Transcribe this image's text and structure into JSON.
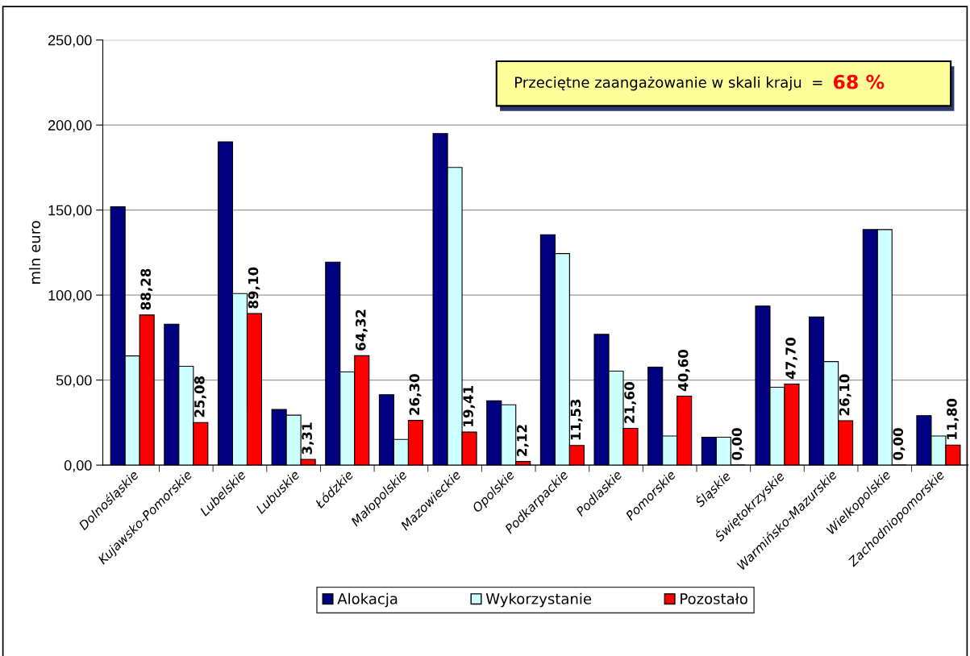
{
  "chart_data": {
    "type": "bar",
    "ylabel": "mln euro",
    "categories": [
      "Dolnośląskie",
      "Kujawsko-Pomorskie",
      "Lubelskie",
      "Lubuskie",
      "Łódzkie",
      "Małopolskie",
      "Mazowieckie",
      "Opolskie",
      "Podkarpackie",
      "Podlaskie",
      "Pomorskie",
      "Śląskie",
      "Świętokrzyskie",
      "Warmińsko-Mazurskie",
      "Wielkopolskie",
      "Zachodniopomorskie"
    ],
    "series": [
      {
        "name": "Alokacja",
        "color": "#000080",
        "values": [
          151.9,
          82.9,
          190.1,
          32.7,
          119.4,
          41.4,
          195.0,
          37.8,
          135.5,
          76.9,
          57.6,
          16.4,
          93.5,
          87.1,
          138.5,
          29.1
        ]
      },
      {
        "name": "Wykorzystanie",
        "color": "#ccffff",
        "values": [
          64.2,
          58.1,
          100.9,
          29.4,
          54.8,
          15.1,
          175.1,
          35.5,
          124.4,
          55.3,
          17.1,
          16.4,
          45.8,
          60.9,
          138.5,
          17.1
        ]
      },
      {
        "name": "Pozostało",
        "color": "#ff0000",
        "values": [
          88.28,
          25.08,
          89.1,
          3.31,
          64.32,
          26.3,
          19.41,
          2.12,
          11.53,
          21.6,
          40.6,
          0.0,
          47.7,
          26.1,
          0.0,
          11.8
        ],
        "value_labels": [
          "88,28",
          "25,08",
          "89,10",
          "3,31",
          "64,32",
          "26,30",
          "19,41",
          "2,12",
          "11,53",
          "21,60",
          "40,60",
          "0,00",
          "47,70",
          "26,10",
          "0,00",
          "11,80"
        ]
      }
    ],
    "ylim": [
      0,
      250
    ],
    "yticks": [
      {
        "value": 0,
        "label": "0,00"
      },
      {
        "value": 50,
        "label": "50,00"
      },
      {
        "value": 100,
        "label": "100,00"
      },
      {
        "value": 150,
        "label": "150,00"
      },
      {
        "value": 200,
        "label": "200,00"
      },
      {
        "value": 250,
        "label": "250,00"
      }
    ],
    "grid": "y",
    "legend": "bottom",
    "annotations": [
      "Przeciętne zaangażowanie w skali kraju  =",
      "68 %"
    ]
  }
}
